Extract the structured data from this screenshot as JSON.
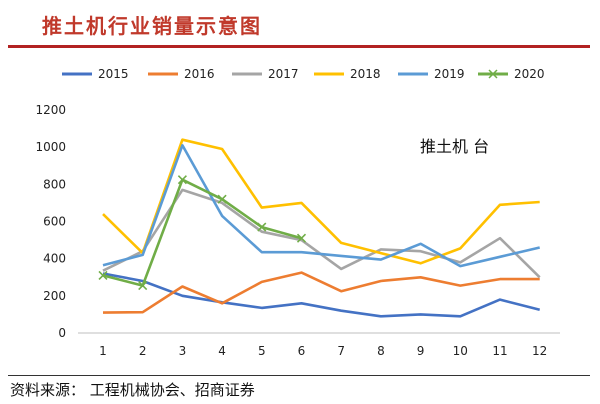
{
  "header": {
    "title": "推土机行业销量示意图"
  },
  "footer": {
    "source": "资料来源： 工程机械协会、招商证券"
  },
  "chart_data": {
    "type": "line",
    "title": "推土机行业销量示意图",
    "annotation": "推土机 台",
    "xlabel": "",
    "ylabel": "",
    "x": [
      1,
      2,
      3,
      4,
      5,
      6,
      7,
      8,
      9,
      10,
      11,
      12
    ],
    "ylim": [
      0,
      1200
    ],
    "yticks": [
      0,
      200,
      400,
      600,
      800,
      1000,
      1200
    ],
    "grid": false,
    "legend_position": "top",
    "series": [
      {
        "name": "2015",
        "color": "#4472c4",
        "values": [
          320,
          280,
          200,
          165,
          135,
          160,
          120,
          90,
          100,
          90,
          180,
          125
        ]
      },
      {
        "name": "2016",
        "color": "#ed7d31",
        "values": [
          110,
          112,
          250,
          160,
          275,
          325,
          225,
          280,
          300,
          255,
          290,
          290
        ]
      },
      {
        "name": "2017",
        "color": "#a5a5a5",
        "values": [
          335,
          440,
          770,
          700,
          545,
          500,
          345,
          450,
          440,
          380,
          510,
          300
        ]
      },
      {
        "name": "2018",
        "color": "#ffc000",
        "values": [
          640,
          430,
          1040,
          990,
          675,
          700,
          485,
          430,
          375,
          455,
          690,
          705
        ]
      },
      {
        "name": "2019",
        "color": "#5b9bd5",
        "values": [
          365,
          420,
          1010,
          630,
          435,
          435,
          415,
          395,
          480,
          360,
          410,
          460
        ]
      },
      {
        "name": "2020",
        "color": "#70ad47",
        "marker": "x",
        "values": [
          310,
          255,
          825,
          720,
          570,
          510,
          null,
          null,
          null,
          null,
          null,
          null
        ]
      }
    ]
  }
}
